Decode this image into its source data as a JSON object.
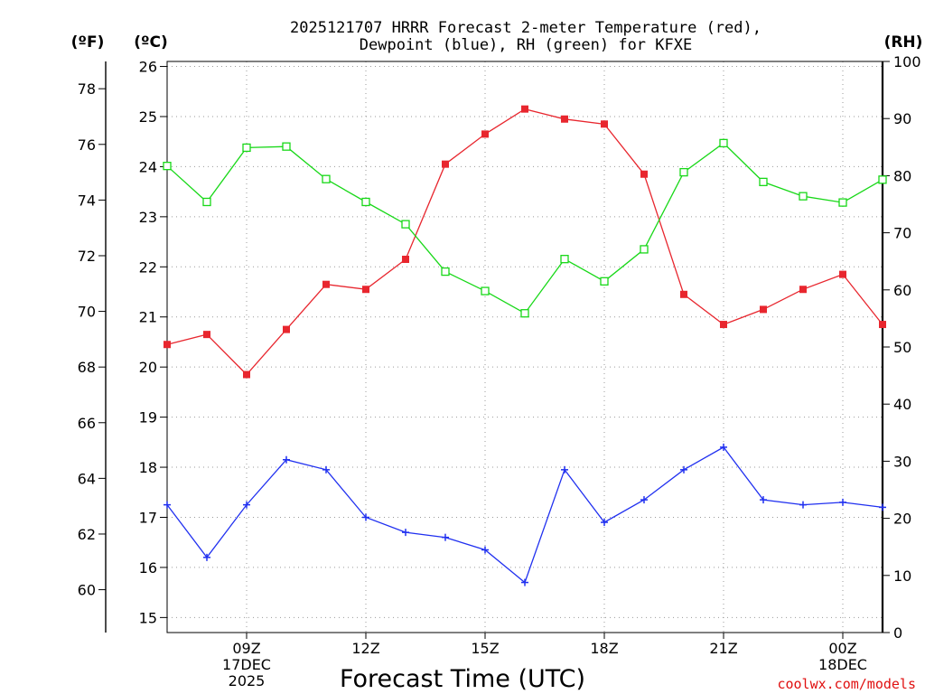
{
  "chart_data": {
    "type": "line",
    "title_line1": "2025121707 HRRR Forecast 2-meter Temperature (red),",
    "title_line2": "Dewpoint (blue), RH (green) for KFXE",
    "xlabel": "Forecast Time (UTC)",
    "credit": "coolwx.com/models",
    "left_outer_unit": "(ºF)",
    "left_inner_unit": "(ºC)",
    "right_unit": "(RH)",
    "hours": [
      7,
      8,
      9,
      10,
      11,
      12,
      13,
      14,
      15,
      16,
      17,
      18,
      19,
      20,
      21,
      22,
      23,
      24,
      25
    ],
    "xlim": [
      7,
      25
    ],
    "x_ticks": [
      {
        "hour": 9,
        "lines": [
          "09Z",
          "17DEC",
          "2025"
        ]
      },
      {
        "hour": 12,
        "lines": [
          "12Z"
        ]
      },
      {
        "hour": 15,
        "lines": [
          "15Z"
        ]
      },
      {
        "hour": 18,
        "lines": [
          "18Z"
        ]
      },
      {
        "hour": 21,
        "lines": [
          "21Z"
        ]
      },
      {
        "hour": 24,
        "lines": [
          "00Z",
          "18DEC"
        ]
      }
    ],
    "celsius_axis": {
      "ylim": [
        14.7,
        26.1
      ],
      "ticks": [
        "15",
        "16",
        "17",
        "18",
        "19",
        "20",
        "21",
        "22",
        "23",
        "24",
        "25",
        "26"
      ]
    },
    "fahrenheit_axis": {
      "ticks": [
        "60",
        "62",
        "64",
        "66",
        "68",
        "70",
        "72",
        "74",
        "76",
        "78"
      ]
    },
    "rh_axis": {
      "ylim": [
        0,
        100
      ],
      "ticks": [
        "0",
        "10",
        "20",
        "30",
        "40",
        "50",
        "60",
        "70",
        "80",
        "90",
        "100"
      ]
    },
    "series": [
      {
        "name": "Temperature",
        "unit": "C",
        "color": "#e8262e",
        "marker": "filled-square",
        "values": [
          20.45,
          20.65,
          19.85,
          20.75,
          21.65,
          21.55,
          22.15,
          24.05,
          24.65,
          25.15,
          24.95,
          24.85,
          23.85,
          21.45,
          20.85,
          21.15,
          21.55,
          21.85,
          20.85
        ]
      },
      {
        "name": "Dewpoint",
        "unit": "C",
        "color": "#2030f0",
        "marker": "plus",
        "values": [
          17.25,
          16.2,
          17.25,
          18.15,
          17.95,
          17.0,
          16.7,
          16.6,
          16.35,
          15.7,
          17.95,
          16.9,
          17.35,
          17.95,
          18.4,
          17.35,
          17.25,
          17.3,
          17.2
        ]
      },
      {
        "name": "RH",
        "unit": "%",
        "color": "#18d818",
        "marker": "open-square",
        "values": [
          81.7,
          75.4,
          84.9,
          85.1,
          79.4,
          75.4,
          71.5,
          63.2,
          59.8,
          55.9,
          65.4,
          61.5,
          67.1,
          80.6,
          85.7,
          78.9,
          76.4,
          75.3,
          79.3
        ]
      }
    ]
  }
}
